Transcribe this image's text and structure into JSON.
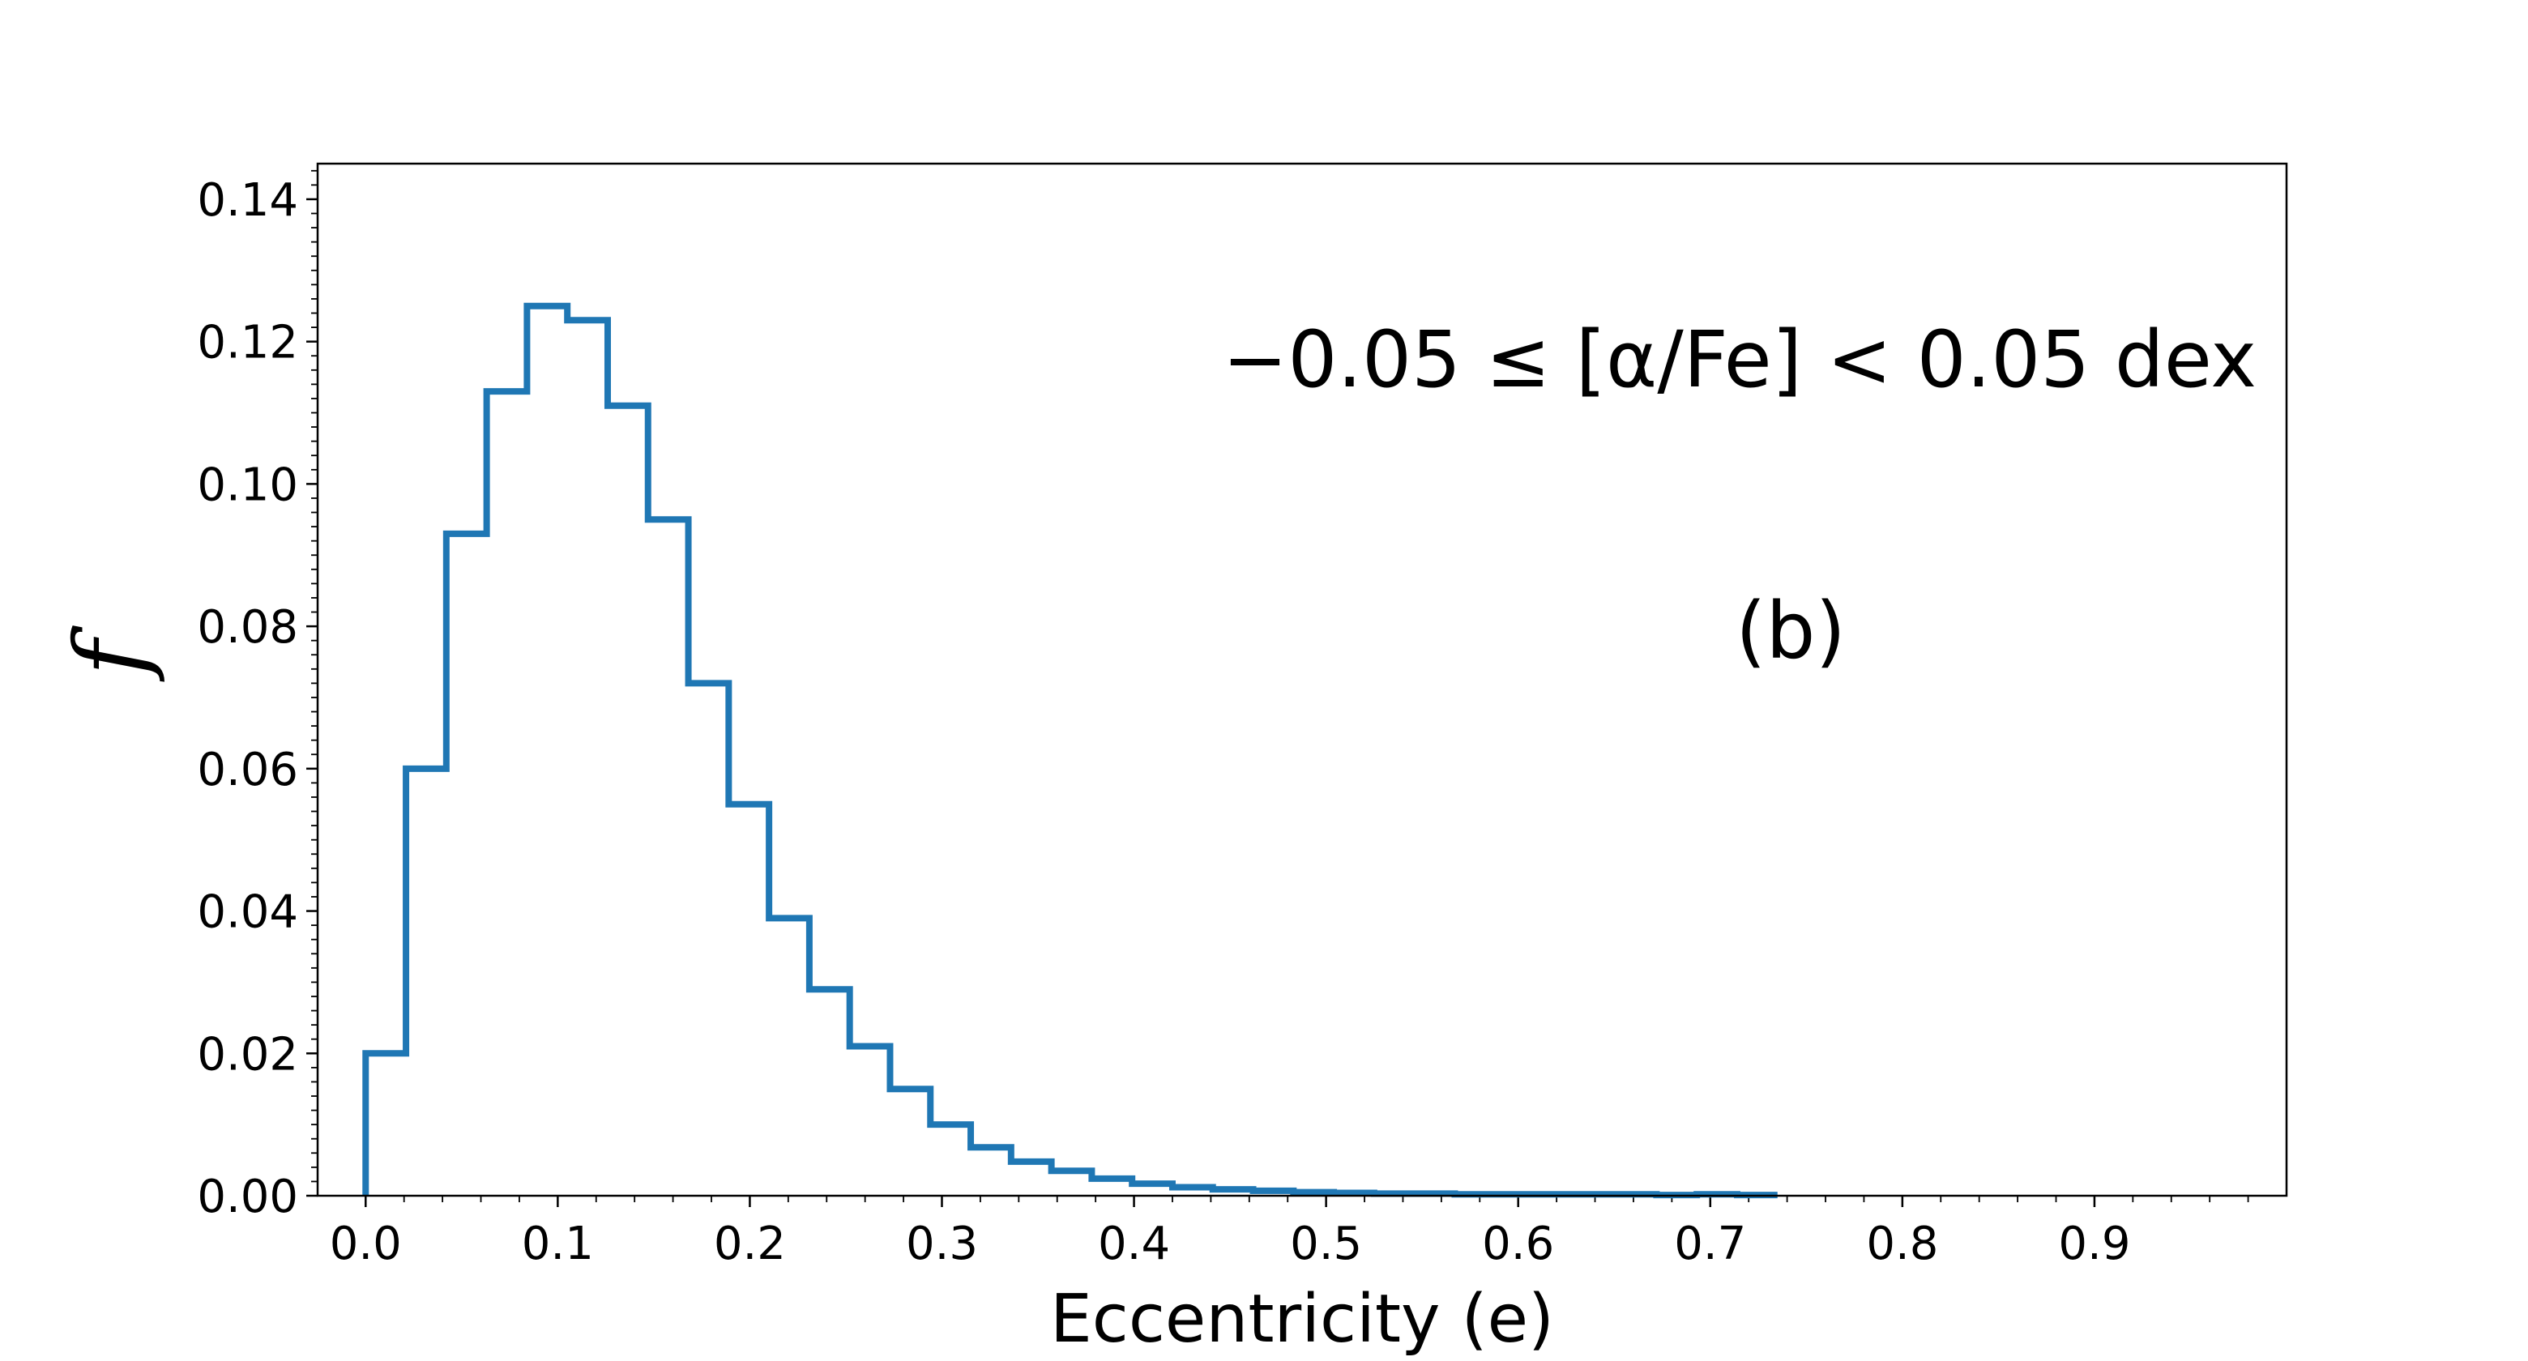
{
  "chart_data": {
    "type": "histogram",
    "title": "",
    "xlabel": "Eccentricity (e)",
    "ylabel": "f",
    "xlim": [
      -0.025,
      1.0
    ],
    "ylim": [
      0.0,
      0.145
    ],
    "grid": false,
    "series_color": "#1f77b4",
    "bin_edges": [
      0.0,
      0.021,
      0.042,
      0.063,
      0.084,
      0.105,
      0.126,
      0.147,
      0.168,
      0.189,
      0.21,
      0.231,
      0.252,
      0.273,
      0.294,
      0.315,
      0.336,
      0.357,
      0.378,
      0.399,
      0.42,
      0.441,
      0.462,
      0.483,
      0.504,
      0.525,
      0.546,
      0.567,
      0.588,
      0.609,
      0.63,
      0.651,
      0.672,
      0.693,
      0.714,
      0.735
    ],
    "values": [
      0.02,
      0.06,
      0.093,
      0.113,
      0.125,
      0.123,
      0.111,
      0.095,
      0.072,
      0.055,
      0.039,
      0.029,
      0.021,
      0.015,
      0.01,
      0.0068,
      0.0048,
      0.0035,
      0.0024,
      0.0017,
      0.0012,
      0.0009,
      0.0007,
      0.0005,
      0.0004,
      0.0003,
      0.0003,
      0.0002,
      0.0002,
      0.0002,
      0.0002,
      0.0002,
      0.0001,
      0.0002,
      0.0001
    ],
    "x_ticks": [
      0.0,
      0.1,
      0.2,
      0.3,
      0.4,
      0.5,
      0.6,
      0.7,
      0.8,
      0.9
    ],
    "x_tick_labels": [
      "0.0",
      "0.1",
      "0.2",
      "0.3",
      "0.4",
      "0.5",
      "0.6",
      "0.7",
      "0.8",
      "0.9"
    ],
    "y_ticks": [
      0.0,
      0.02,
      0.04,
      0.06,
      0.08,
      0.1,
      0.12,
      0.14
    ],
    "y_tick_labels": [
      "0.00",
      "0.02",
      "0.04",
      "0.06",
      "0.08",
      "0.10",
      "0.12",
      "0.14"
    ],
    "annotations": {
      "range_label": "−0.05 ≤ [α/Fe] < 0.05 dex",
      "panel_label": "(b)"
    }
  }
}
